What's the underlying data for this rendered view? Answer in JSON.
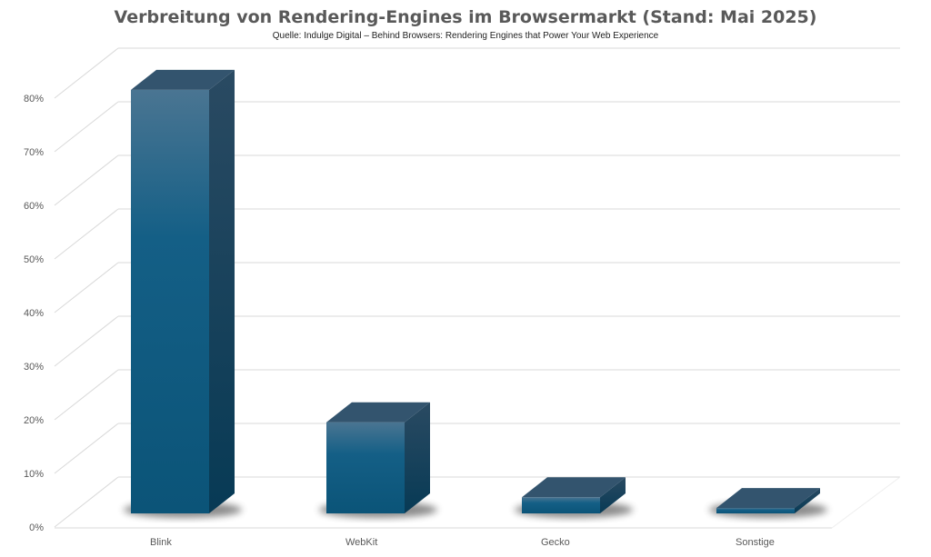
{
  "chart_data": {
    "type": "bar",
    "style": "3d-column",
    "title": "Verbreitung von Rendering-Engines im Browsermarkt (Stand: Mai 2025)",
    "subtitle": "Quelle: Indulge Digital – Behind Browsers: Rendering Engines that Power Your Web Experience",
    "categories": [
      "Blink",
      "WebKit",
      "Gecko",
      "Sonstige"
    ],
    "values": [
      79,
      17,
      3,
      1
    ],
    "unit": "%",
    "ylim": [
      0,
      80
    ],
    "yticks": [
      "0%",
      "10%",
      "20%",
      "30%",
      "40%",
      "50%",
      "60%",
      "70%",
      "80%"
    ],
    "grid": true,
    "legend": "none",
    "colors": {
      "bar_front": "#0f5a80",
      "bar_top": "#33546e",
      "bar_side": "#123d55",
      "grid": "#d9d9d9"
    }
  }
}
